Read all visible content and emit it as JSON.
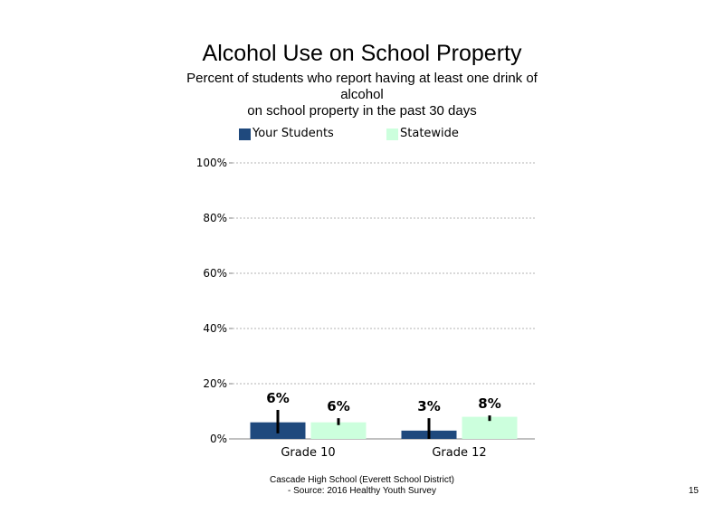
{
  "chart_data": {
    "type": "bar",
    "title": "Alcohol Use on School Property",
    "subtitle_lines": [
      "Percent of students  who report having at least one drink of",
      "alcohol",
      "on school property in the past 30 days"
    ],
    "categories": [
      "Grade 10",
      "Grade 12"
    ],
    "series": [
      {
        "name": "Your Students",
        "color": "#1f497d",
        "values": [
          6,
          3
        ],
        "labels": [
          "6%",
          "3%"
        ],
        "error_low": [
          2,
          0
        ],
        "error_high": [
          10.5,
          7.5
        ]
      },
      {
        "name": "Statewide",
        "color": "#ccffdd",
        "values": [
          6,
          8
        ],
        "labels": [
          "6%",
          "8%"
        ],
        "error_low": [
          5,
          6.5
        ],
        "error_high": [
          7.5,
          8.5
        ]
      }
    ],
    "ylim": [
      0,
      100
    ],
    "yticks": [
      0,
      20,
      40,
      60,
      80,
      100
    ],
    "ytick_labels": [
      "0%",
      "20%",
      "40%",
      "60%",
      "80%",
      "100%"
    ],
    "gridlines": "dotted",
    "legend_position": "top"
  },
  "footer": {
    "line1": "Cascade High School (Everett School District)",
    "line2": "- Source: 2016 Healthy  Youth Survey"
  },
  "page_number": "15"
}
